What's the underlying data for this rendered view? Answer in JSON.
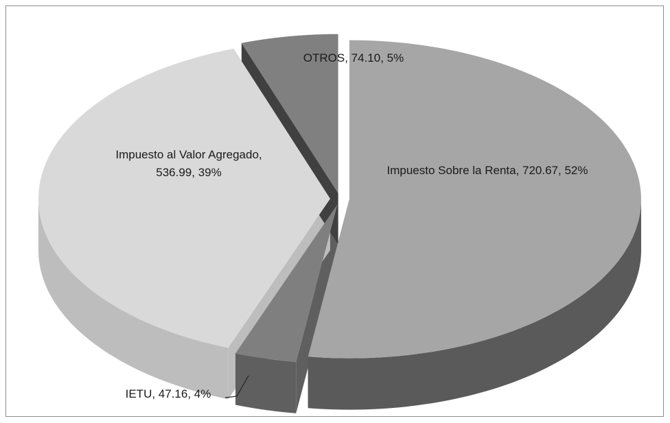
{
  "chart_data": {
    "type": "pie3d",
    "values": [
      720.67,
      47.16,
      536.99,
      74.1
    ],
    "value_labels": [
      "Impuesto Sobre la Renta, 720.67, 52%",
      "IETU, 47.16, 4%",
      "Impuesto al Valor Agregado, 536.99, 39%",
      "OTROS, 74.10, 5%"
    ],
    "colors": [
      "#a6a6a6",
      "#7f7f7f",
      "#d9d9d9",
      "#808080"
    ],
    "side_colors": [
      "#5a5a5a",
      "#5f5f5f",
      "#bdbdbd",
      "#404040"
    ]
  }
}
